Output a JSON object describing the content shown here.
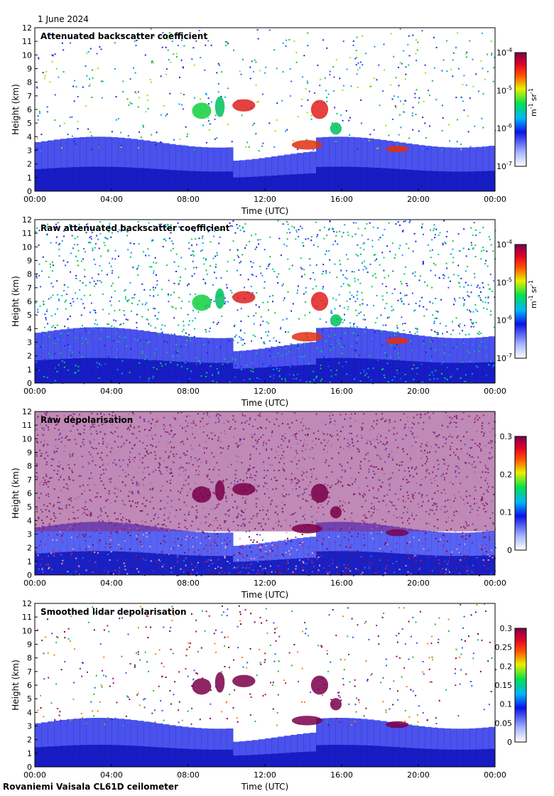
{
  "date_label": "1 June 2024",
  "footer": "Rovaniemi Vaisala CL61D ceilometer",
  "chart_data": [
    {
      "type": "heatmap",
      "title": "Attenuated backscatter coefficient",
      "xlabel": "Time (UTC)",
      "ylabel": "Height (km)",
      "xticks": [
        "00:00",
        "04:00",
        "08:00",
        "12:00",
        "16:00",
        "20:00",
        "00:00"
      ],
      "yticks": [
        "0",
        "1",
        "2",
        "3",
        "4",
        "5",
        "6",
        "7",
        "8",
        "9",
        "10",
        "11",
        "12"
      ],
      "ylim": [
        0,
        12
      ],
      "colorbar": {
        "scale": "log",
        "ticks": [
          {
            "base": "10",
            "exp": "-4",
            "value": 0.0001
          },
          {
            "base": "10",
            "exp": "-5",
            "value": 1e-05
          },
          {
            "base": "10",
            "exp": "-6",
            "value": 1e-06
          },
          {
            "base": "10",
            "exp": "-7",
            "value": 1e-07
          }
        ],
        "unit": {
          "m": "m",
          "m_exp": "-1",
          "sr": "sr",
          "sr_exp": "-1"
        }
      }
    },
    {
      "type": "heatmap",
      "title": "Raw attenuated backscatter coefficient",
      "xlabel": "Time (UTC)",
      "ylabel": "Height (km)",
      "xticks": [
        "00:00",
        "04:00",
        "08:00",
        "12:00",
        "16:00",
        "20:00",
        "00:00"
      ],
      "yticks": [
        "0",
        "1",
        "2",
        "3",
        "4",
        "5",
        "6",
        "7",
        "8",
        "9",
        "10",
        "11",
        "12"
      ],
      "ylim": [
        0,
        12
      ],
      "colorbar": {
        "scale": "log",
        "ticks": [
          {
            "base": "10",
            "exp": "-4",
            "value": 0.0001
          },
          {
            "base": "10",
            "exp": "-5",
            "value": 1e-05
          },
          {
            "base": "10",
            "exp": "-6",
            "value": 1e-06
          },
          {
            "base": "10",
            "exp": "-7",
            "value": 1e-07
          }
        ],
        "unit": {
          "m": "m",
          "m_exp": "-1",
          "sr": "sr",
          "sr_exp": "-1"
        }
      }
    },
    {
      "type": "heatmap",
      "title": "Raw depolarisation",
      "xlabel": "Time (UTC)",
      "ylabel": "Height (km)",
      "xticks": [
        "00:00",
        "04:00",
        "08:00",
        "12:00",
        "16:00",
        "20:00",
        "00:00"
      ],
      "yticks": [
        "0",
        "1",
        "2",
        "3",
        "4",
        "5",
        "6",
        "7",
        "8",
        "9",
        "10",
        "11",
        "12"
      ],
      "ylim": [
        0,
        12
      ],
      "colorbar": {
        "scale": "linear",
        "range": [
          0,
          0.3
        ],
        "ticks": [
          {
            "label": "0.3",
            "value": 0.3
          },
          {
            "label": "0.2",
            "value": 0.2
          },
          {
            "label": "0.1",
            "value": 0.1
          },
          {
            "label": "0",
            "value": 0
          }
        ]
      }
    },
    {
      "type": "heatmap",
      "title": "Smoothed lidar depolarisation",
      "xlabel": "Time (UTC)",
      "ylabel": "Height (km)",
      "xticks": [
        "00:00",
        "04:00",
        "08:00",
        "12:00",
        "16:00",
        "20:00",
        "00:00"
      ],
      "yticks": [
        "0",
        "1",
        "2",
        "3",
        "4",
        "5",
        "6",
        "7",
        "8",
        "9",
        "10",
        "11",
        "12"
      ],
      "ylim": [
        0,
        12
      ],
      "colorbar": {
        "scale": "linear",
        "range": [
          0,
          0.3
        ],
        "ticks": [
          {
            "label": "0.3",
            "value": 0.3
          },
          {
            "label": "0.25",
            "value": 0.25
          },
          {
            "label": "0.2",
            "value": 0.2
          },
          {
            "label": "0.15",
            "value": 0.15
          },
          {
            "label": "0.1",
            "value": 0.1
          },
          {
            "label": "0.05",
            "value": 0.05
          },
          {
            "label": "0",
            "value": 0
          }
        ]
      }
    }
  ]
}
